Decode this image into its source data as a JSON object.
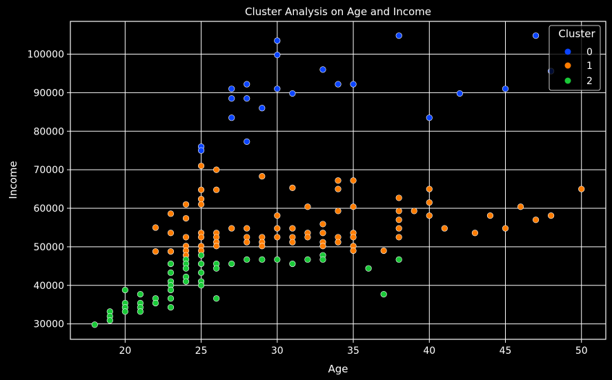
{
  "chart_data": {
    "type": "scatter",
    "title": "Cluster Analysis on Age and Income",
    "xlabel": "Age",
    "ylabel": "Income",
    "xlim": [
      16.4,
      51.6
    ],
    "ylim": [
      26000,
      108500
    ],
    "xticks": [
      20,
      25,
      30,
      35,
      40,
      45,
      50
    ],
    "yticks": [
      30000,
      40000,
      50000,
      60000,
      70000,
      80000,
      90000,
      100000
    ],
    "grid": true,
    "legend": {
      "title": "Cluster",
      "placement": "top-right"
    },
    "colors": {
      "0": "#0b44ff",
      "1": "#ff7c00",
      "2": "#1ac938",
      "background": "#000000",
      "grid": "#ffffff"
    },
    "series": [
      {
        "name": "0",
        "points": [
          [
            25,
            76000
          ],
          [
            25,
            75000
          ],
          [
            27,
            91000
          ],
          [
            27,
            88500
          ],
          [
            27,
            83500
          ],
          [
            28,
            92200
          ],
          [
            28,
            88500
          ],
          [
            28,
            77300
          ],
          [
            29,
            86000
          ],
          [
            30,
            103500
          ],
          [
            30,
            99800
          ],
          [
            30,
            91000
          ],
          [
            31,
            89800
          ],
          [
            33,
            96000
          ],
          [
            34,
            92200
          ],
          [
            35,
            92200
          ],
          [
            38,
            104800
          ],
          [
            40,
            83500
          ],
          [
            42,
            89800
          ],
          [
            45,
            91000
          ],
          [
            47,
            104800
          ],
          [
            48,
            95600
          ]
        ]
      },
      {
        "name": "1",
        "points": [
          [
            22,
            55000
          ],
          [
            22,
            48800
          ],
          [
            23,
            58600
          ],
          [
            23,
            53600
          ],
          [
            23,
            48800
          ],
          [
            24,
            61000
          ],
          [
            24,
            57400
          ],
          [
            24,
            52500
          ],
          [
            24,
            50200
          ],
          [
            24,
            49000
          ],
          [
            24,
            47800
          ],
          [
            25,
            71000
          ],
          [
            25,
            64800
          ],
          [
            25,
            62400
          ],
          [
            25,
            61000
          ],
          [
            25,
            53600
          ],
          [
            25,
            52500
          ],
          [
            25,
            50200
          ],
          [
            25,
            49000
          ],
          [
            26,
            70000
          ],
          [
            26,
            64800
          ],
          [
            26,
            53600
          ],
          [
            26,
            52500
          ],
          [
            26,
            51200
          ],
          [
            26,
            50200
          ],
          [
            27,
            54800
          ],
          [
            28,
            54800
          ],
          [
            28,
            52500
          ],
          [
            28,
            51200
          ],
          [
            29,
            68300
          ],
          [
            29,
            52500
          ],
          [
            29,
            51200
          ],
          [
            29,
            50200
          ],
          [
            30,
            58100
          ],
          [
            30,
            54800
          ],
          [
            30,
            52500
          ],
          [
            31,
            65300
          ],
          [
            31,
            54800
          ],
          [
            31,
            52500
          ],
          [
            31,
            51200
          ],
          [
            32,
            60400
          ],
          [
            32,
            53600
          ],
          [
            32,
            52500
          ],
          [
            33,
            55900
          ],
          [
            33,
            53600
          ],
          [
            33,
            51200
          ],
          [
            33,
            50200
          ],
          [
            34,
            67200
          ],
          [
            34,
            65000
          ],
          [
            34,
            59300
          ],
          [
            34,
            52500
          ],
          [
            34,
            51200
          ],
          [
            35,
            67200
          ],
          [
            35,
            60400
          ],
          [
            35,
            53600
          ],
          [
            35,
            52500
          ],
          [
            35,
            50200
          ],
          [
            35,
            49000
          ],
          [
            37,
            49000
          ],
          [
            38,
            62700
          ],
          [
            38,
            59300
          ],
          [
            38,
            57000
          ],
          [
            38,
            54800
          ],
          [
            38,
            52500
          ],
          [
            39,
            59300
          ],
          [
            40,
            65000
          ],
          [
            40,
            61500
          ],
          [
            40,
            58100
          ],
          [
            41,
            54800
          ],
          [
            43,
            53600
          ],
          [
            44,
            58100
          ],
          [
            45,
            54800
          ],
          [
            46,
            60400
          ],
          [
            47,
            57000
          ],
          [
            48,
            58100
          ],
          [
            50,
            65000
          ]
        ]
      },
      {
        "name": "2",
        "points": [
          [
            18,
            29800
          ],
          [
            19,
            33200
          ],
          [
            19,
            32000
          ],
          [
            19,
            30900
          ],
          [
            20,
            38800
          ],
          [
            20,
            35400
          ],
          [
            20,
            34300
          ],
          [
            20,
            33200
          ],
          [
            21,
            37700
          ],
          [
            21,
            35400
          ],
          [
            21,
            34300
          ],
          [
            21,
            33200
          ],
          [
            22,
            36600
          ],
          [
            22,
            35400
          ],
          [
            23,
            45600
          ],
          [
            23,
            43300
          ],
          [
            23,
            41000
          ],
          [
            23,
            40000
          ],
          [
            23,
            38800
          ],
          [
            23,
            36600
          ],
          [
            23,
            34300
          ],
          [
            24,
            46700
          ],
          [
            24,
            45600
          ],
          [
            24,
            44400
          ],
          [
            24,
            42200
          ],
          [
            24,
            41000
          ],
          [
            25,
            47800
          ],
          [
            25,
            45600
          ],
          [
            25,
            43300
          ],
          [
            25,
            41000
          ],
          [
            25,
            40000
          ],
          [
            26,
            45600
          ],
          [
            26,
            44400
          ],
          [
            26,
            36600
          ],
          [
            27,
            45600
          ],
          [
            28,
            46700
          ],
          [
            29,
            46700
          ],
          [
            30,
            46700
          ],
          [
            31,
            45600
          ],
          [
            32,
            46700
          ],
          [
            33,
            47800
          ],
          [
            33,
            46700
          ],
          [
            36,
            44400
          ],
          [
            37,
            37700
          ],
          [
            38,
            46700
          ]
        ]
      }
    ]
  }
}
